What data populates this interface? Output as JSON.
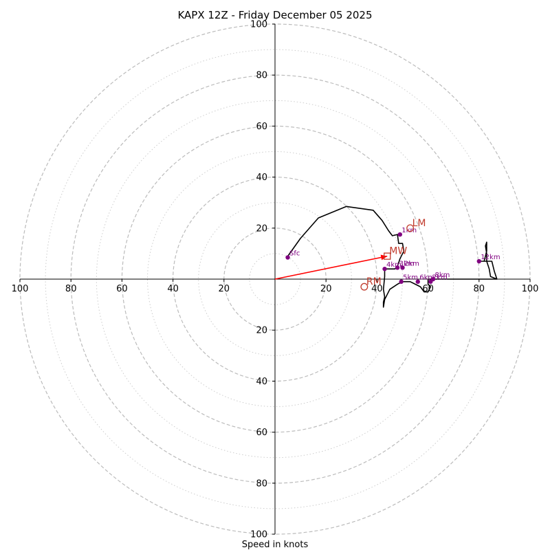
{
  "chart_data": {
    "type": "hodograph",
    "title": "KAPX 12Z - Friday December 05 2025",
    "xlabel": "Speed in knots",
    "units": "knots",
    "range": [
      -100,
      100
    ],
    "rings_major": [
      20,
      40,
      60,
      80,
      100
    ],
    "rings_minor": [
      10,
      30,
      50,
      70,
      90
    ],
    "tick_labels_x": [
      "100",
      "80",
      "60",
      "40",
      "20",
      "20",
      "40",
      "60",
      "80",
      "100"
    ],
    "tick_values_x": [
      -100,
      -80,
      -60,
      -40,
      -20,
      20,
      40,
      60,
      80,
      100
    ],
    "tick_labels_y": [
      "100",
      "80",
      "60",
      "40",
      "20",
      "20",
      "40",
      "60",
      "80",
      "100"
    ],
    "tick_values_y": [
      100,
      80,
      60,
      40,
      20,
      -20,
      -40,
      -60,
      -80,
      -100
    ],
    "profile": [
      [
        5,
        9
      ],
      [
        10,
        16
      ],
      [
        17,
        24
      ],
      [
        28,
        28.5
      ],
      [
        38.5,
        27
      ],
      [
        42,
        23
      ],
      [
        44.5,
        19
      ],
      [
        46,
        17
      ],
      [
        48,
        17.5
      ],
      [
        48.5,
        14
      ],
      [
        50,
        14
      ],
      [
        50.5,
        11
      ],
      [
        49,
        8
      ],
      [
        48,
        5
      ],
      [
        47,
        4
      ],
      [
        45,
        4
      ],
      [
        43,
        4
      ],
      [
        43,
        1
      ],
      [
        42.5,
        -4
      ],
      [
        43,
        -7
      ],
      [
        42.5,
        -9
      ],
      [
        42.5,
        -11
      ],
      [
        43,
        -8
      ],
      [
        45,
        -4
      ],
      [
        48,
        -2
      ],
      [
        50,
        -1
      ],
      [
        53,
        -1
      ],
      [
        55,
        -2
      ],
      [
        57,
        -3
      ],
      [
        58.5,
        -5
      ],
      [
        60,
        -5
      ],
      [
        61,
        -3
      ],
      [
        60,
        -2
      ],
      [
        60,
        0
      ],
      [
        65,
        0
      ],
      [
        72,
        0
      ],
      [
        87,
        0
      ],
      [
        86,
        3
      ],
      [
        85,
        7
      ],
      [
        81,
        7
      ],
      [
        80,
        7
      ],
      [
        82,
        7
      ],
      [
        83,
        11
      ],
      [
        83,
        14.5
      ],
      [
        82.5,
        13
      ],
      [
        83,
        10
      ],
      [
        83,
        7
      ],
      [
        84,
        4
      ],
      [
        84.5,
        1
      ],
      [
        87,
        0
      ]
    ],
    "height_markers": [
      {
        "label": "Sfc",
        "u": 5,
        "v": 8.5
      },
      {
        "label": "1km",
        "u": 49,
        "v": 17.5
      },
      {
        "label": "2km",
        "u": 50,
        "v": 4.5
      },
      {
        "label": "3km",
        "u": 48,
        "v": 4.5
      },
      {
        "label": "4km",
        "u": 43,
        "v": 4
      },
      {
        "label": "5km",
        "u": 49.5,
        "v": -1
      },
      {
        "label": "6km",
        "u": 56,
        "v": -1
      },
      {
        "label": "7km",
        "u": 61,
        "v": -1
      },
      {
        "label": "8km",
        "u": 62,
        "v": 0
      },
      {
        "label": "12km",
        "u": 80,
        "v": 7
      }
    ],
    "storm_motion": [
      {
        "label": "LM",
        "u": 53,
        "v": 20,
        "marker": "circle"
      },
      {
        "label": "MW",
        "u": 44,
        "v": 9,
        "marker": "square"
      },
      {
        "label": "RM",
        "u": 35,
        "v": -3,
        "marker": "circle"
      }
    ],
    "mean_wind_vector": {
      "u": 44,
      "v": 9
    },
    "colors": {
      "profile": "#000000",
      "markers": "#800080",
      "storm": "#c0392b",
      "vector": "#ff0000",
      "ring_major": "#bbbbbb",
      "ring_minor": "#cccccc",
      "axis": "#000000"
    }
  }
}
